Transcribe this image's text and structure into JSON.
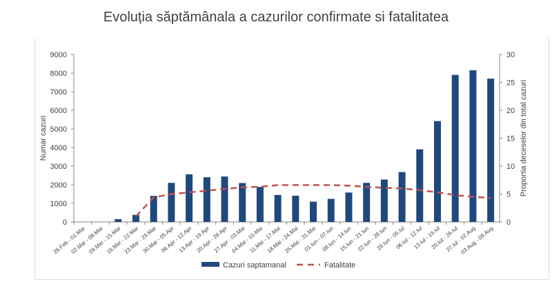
{
  "chart_data": {
    "type": "bar",
    "title": "Evoluția săptămânala a cazurilor confirmate si fatalitatea",
    "ylabel": "Numar cazuri",
    "y2label": "Proportia deceselor din total cazuri",
    "ylim": [
      0,
      9000
    ],
    "y2lim": [
      0,
      30
    ],
    "yticks": [
      0,
      1000,
      2000,
      3000,
      4000,
      5000,
      6000,
      7000,
      8000,
      9000
    ],
    "y2ticks": [
      0,
      5,
      10,
      15,
      20,
      25,
      30
    ],
    "legend": "bottom",
    "categories": [
      "26.Feb - 01.Mar",
      "02.Mar - 08.Mar",
      "09.Mar - 15.Mar",
      "16.Mar - 22.Mar",
      "23.Mar - 29.Mar",
      "30.Mar - 05.Apr",
      "06.Apr - 12.Apr",
      "13.Apr - 19.Apr",
      "20.Apr - 26.Apr",
      "27.Apr - 03.Mai",
      "04.Mai - 10.Mai",
      "11.Mai - 17.Mai",
      "18.Mai - 24.Mai",
      "25.Mai - 31.Mai",
      "01.Iun - 07.Iun",
      "08.Iun - 14.Iun",
      "15.Iun - 21.Iun",
      "22.Iun - 28.Iun",
      "29.Iun - 05.Iul",
      "06.Iul - 12.Iul",
      "13.Iul - 19.Iul",
      "20.Iul - 26.Iul",
      "27.Iul - 02.Aug",
      "03.Aug - 09.Aug"
    ],
    "series": [
      {
        "name": "Cazuri saptamanal",
        "type": "bar",
        "axis": "left",
        "color": "#1f497d",
        "values": [
          0,
          0,
          150,
          380,
          1400,
          2100,
          2560,
          2400,
          2440,
          2090,
          1880,
          1450,
          1410,
          1090,
          1240,
          1580,
          2100,
          2280,
          2680,
          3900,
          5420,
          7900,
          8150,
          7700
        ]
      },
      {
        "name": "Fatalitate",
        "type": "line",
        "axis": "right",
        "style": "dashed",
        "color": "#c0504d",
        "values": [
          null,
          null,
          null,
          1.0,
          4.4,
          5.0,
          5.3,
          5.6,
          5.9,
          6.2,
          6.3,
          6.6,
          6.6,
          6.6,
          6.6,
          6.5,
          6.3,
          6.1,
          6.0,
          5.7,
          5.3,
          4.8,
          4.5,
          4.3
        ]
      }
    ]
  }
}
